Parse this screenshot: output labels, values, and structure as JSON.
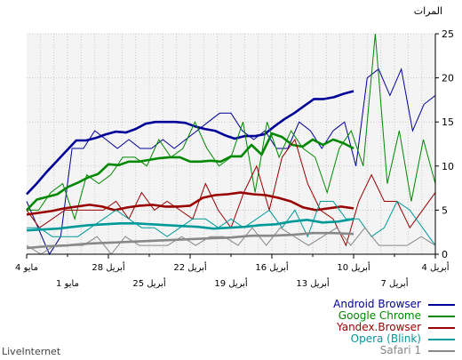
{
  "brand": "LiveInternet",
  "chart_data": {
    "type": "line",
    "ylabel": "المرات",
    "ylim": [
      0,
      25
    ],
    "yticks": [
      0,
      5,
      10,
      15,
      20,
      25
    ],
    "x_ticks_top": [
      "4 أبريل",
      "10 أبريل",
      "16 أبريل",
      "22 أبريل",
      "28 أبريل",
      "4 مايو"
    ],
    "x_ticks_bottom": [
      "7 أبريل",
      "13 أبريل",
      "19 أبريل",
      "25 أبريل",
      "1 مايو"
    ],
    "grid": true,
    "legend_position": "bottom-right",
    "series": [
      {
        "name": "Android Browser",
        "color": "#000099",
        "daily": [
          18,
          17,
          14,
          21,
          18,
          21,
          20,
          10,
          15,
          14,
          12,
          14,
          15,
          12,
          12,
          14,
          13,
          14,
          16,
          16,
          15,
          14,
          13,
          12,
          13,
          12,
          12,
          13,
          12,
          13,
          14,
          12,
          12,
          2,
          0,
          3,
          6
        ],
        "avg": [
          18.5,
          18.2,
          17.8,
          17.6,
          17.6,
          16.8,
          16,
          15.3,
          14.5,
          13.6,
          13.4,
          13.4,
          13.1,
          13.5,
          14.0,
          14.2,
          14.5,
          14.9,
          15,
          15,
          15,
          14.8,
          14.2,
          13.8,
          13.9,
          13.6,
          13.2,
          12.9,
          12.9,
          11.7,
          10.5,
          9.3,
          8,
          6.8
        ]
      },
      {
        "name": "Google Chrome",
        "color": "#008800",
        "daily": [
          8,
          13,
          6,
          14,
          8,
          25,
          10,
          14,
          12,
          7,
          11,
          12,
          14,
          11,
          15,
          7,
          15,
          11,
          10,
          12,
          15,
          12,
          11,
          13,
          10,
          11,
          11,
          9,
          8,
          9,
          4,
          8,
          7,
          5,
          5
        ],
        "avg": [
          12,
          12.6,
          13,
          12.4,
          13,
          12.2,
          12.4,
          13.3,
          13.7,
          11.3,
          12.4,
          11.1,
          11.1,
          10.5,
          10.6,
          10.5,
          10.5,
          11.0,
          11.0,
          10.9,
          10.7,
          10.5,
          10.5,
          10.1,
          10.2,
          9.1,
          8.7,
          8.1,
          7.6,
          6.8,
          6.5,
          6.2,
          5
        ]
      },
      {
        "name": "Yandex.Browser",
        "color": "#990000",
        "daily": [
          7,
          5,
          3,
          6,
          6,
          9,
          6,
          1,
          4,
          5,
          8,
          13,
          11,
          5,
          10,
          7,
          3,
          5,
          8,
          4,
          5,
          6,
          5,
          7,
          4,
          6,
          5,
          5,
          5,
          5,
          4,
          3,
          5
        ],
        "avg": [
          5.2,
          5.4,
          5.2,
          5.0,
          5.3,
          6.0,
          6.4,
          6.7,
          6.8,
          7.0,
          6.8,
          6.7,
          6.4,
          5.5,
          5.4,
          5.4,
          5.6,
          5.5,
          5.3,
          5.0,
          5.4,
          5.6,
          5.4,
          5.2,
          4.9,
          4.7,
          4.5
        ]
      },
      {
        "name": "Opera (Blink)",
        "color": "#009999",
        "daily": [
          1,
          3,
          5,
          6,
          3,
          2,
          4,
          4,
          6,
          6,
          2,
          5,
          3,
          5,
          4,
          3,
          4,
          3,
          4,
          4,
          3,
          2,
          3,
          3,
          4,
          5,
          4,
          3,
          2,
          2,
          2,
          3,
          3
        ],
        "avg": [
          4,
          3.7,
          3.6,
          3.9,
          3.7,
          3.4,
          3.3,
          3.1,
          3.0,
          2.9,
          3.1,
          3.2,
          3.3,
          3.4,
          3.5,
          3.5,
          3.4,
          3.3,
          3.1,
          2.9,
          2.8,
          2.7
        ]
      },
      {
        "name": "Safari 1",
        "color": "#888888",
        "daily": [
          1,
          2,
          1,
          1,
          1,
          3,
          1,
          3,
          2,
          1,
          2,
          3,
          1,
          3,
          1,
          2,
          2,
          1,
          2,
          1,
          1,
          1,
          2,
          0,
          2,
          1,
          1,
          1,
          0,
          1
        ],
        "avg": [
          2.3,
          2.4,
          2.4,
          2.2,
          2.1,
          2.1,
          1.9,
          1.8,
          1.7,
          1.6,
          1.5,
          1.4,
          1.3,
          1.2,
          1.0,
          0.9,
          0.7
        ]
      }
    ]
  }
}
